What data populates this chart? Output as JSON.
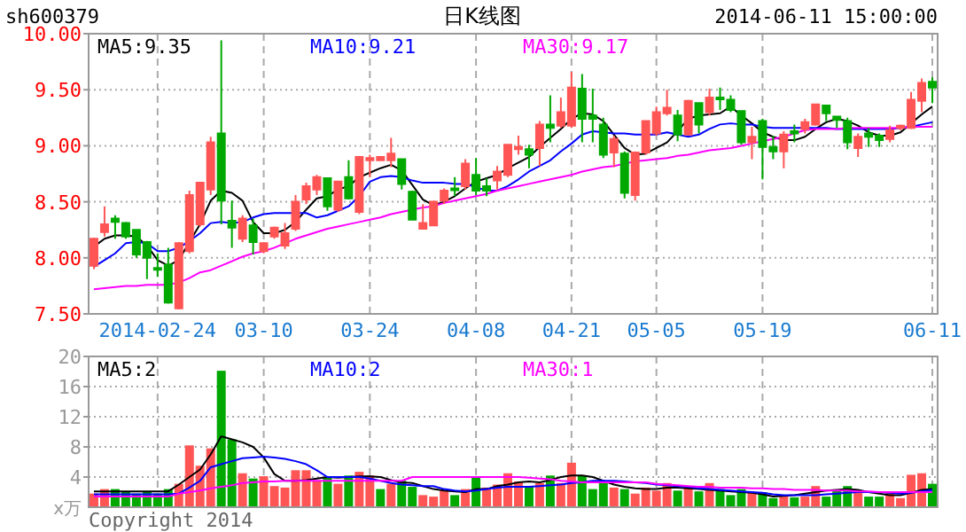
{
  "chart_data": [
    {
      "type": "candlestick",
      "title": "日K线图",
      "annotations": [
        "sh600379",
        "2014-06-11 15:00:00"
      ],
      "categories": [
        null,
        null,
        null,
        null,
        null,
        null,
        "2014-02-24",
        null,
        null,
        null,
        null,
        null,
        null,
        null,
        null,
        null,
        "03-10",
        null,
        null,
        null,
        null,
        null,
        null,
        null,
        null,
        null,
        "03-24",
        null,
        null,
        null,
        null,
        null,
        null,
        null,
        null,
        null,
        "04-08",
        null,
        null,
        null,
        null,
        null,
        null,
        null,
        null,
        "04-21",
        null,
        null,
        null,
        null,
        null,
        null,
        null,
        "05-05",
        null,
        null,
        null,
        null,
        null,
        null,
        null,
        null,
        null,
        "05-19",
        null,
        null,
        null,
        null,
        null,
        null,
        null,
        null,
        null,
        null,
        null,
        null,
        null,
        null,
        null,
        "06-11"
      ],
      "ohlc": [
        [
          7.93,
          8.18,
          7.9,
          8.17
        ],
        [
          8.23,
          8.46,
          8.19,
          8.3
        ],
        [
          8.35,
          8.38,
          8.17,
          8.32
        ],
        [
          8.31,
          8.32,
          8.17,
          8.19
        ],
        [
          8.25,
          8.25,
          8.0,
          8.03
        ],
        [
          8.14,
          8.15,
          7.81,
          8.0
        ],
        [
          7.91,
          8.04,
          7.83,
          7.9
        ],
        [
          7.94,
          8.09,
          7.59,
          7.6
        ],
        [
          7.55,
          8.14,
          7.54,
          8.13
        ],
        [
          8.06,
          8.6,
          8.04,
          8.56
        ],
        [
          8.3,
          8.67,
          8.28,
          8.67
        ],
        [
          8.61,
          9.08,
          8.56,
          9.03
        ],
        [
          9.11,
          9.94,
          8.3,
          8.51
        ],
        [
          8.33,
          8.51,
          8.09,
          8.27
        ],
        [
          8.17,
          8.38,
          8.14,
          8.35
        ],
        [
          8.29,
          8.35,
          8.03,
          8.14
        ],
        [
          8.06,
          8.14,
          8.04,
          8.13
        ],
        [
          8.19,
          8.28,
          8.17,
          8.27
        ],
        [
          8.11,
          8.31,
          8.08,
          8.22
        ],
        [
          8.26,
          8.56,
          8.24,
          8.5
        ],
        [
          8.52,
          8.67,
          8.48,
          8.64
        ],
        [
          8.61,
          8.74,
          8.56,
          8.72
        ],
        [
          8.71,
          8.71,
          8.42,
          8.46
        ],
        [
          8.43,
          8.68,
          8.41,
          8.68
        ],
        [
          8.72,
          8.87,
          8.52,
          8.53
        ],
        [
          8.41,
          8.9,
          8.39,
          8.9
        ],
        [
          8.87,
          8.92,
          8.72,
          8.89
        ],
        [
          8.87,
          8.9,
          8.87,
          8.9
        ],
        [
          8.87,
          9.07,
          8.81,
          8.93
        ],
        [
          8.88,
          8.88,
          8.61,
          8.66
        ],
        [
          8.59,
          8.6,
          8.34,
          8.34
        ],
        [
          8.26,
          8.48,
          8.26,
          8.31
        ],
        [
          8.29,
          8.51,
          8.29,
          8.5
        ],
        [
          8.51,
          8.62,
          8.48,
          8.6
        ],
        [
          8.62,
          8.72,
          8.55,
          8.61
        ],
        [
          8.64,
          8.88,
          8.61,
          8.84
        ],
        [
          8.74,
          8.89,
          8.56,
          8.6
        ],
        [
          8.64,
          8.71,
          8.55,
          8.6
        ],
        [
          8.69,
          8.82,
          8.61,
          8.77
        ],
        [
          8.74,
          9.01,
          8.72,
          9.01
        ],
        [
          8.97,
          9.09,
          8.92,
          8.99
        ],
        [
          8.97,
          9.01,
          8.8,
          8.92
        ],
        [
          8.98,
          9.22,
          8.82,
          9.19
        ],
        [
          9.19,
          9.45,
          9.03,
          9.16
        ],
        [
          9.18,
          9.43,
          9.16,
          9.3
        ],
        [
          9.18,
          9.66,
          9.16,
          9.52
        ],
        [
          9.51,
          9.64,
          9.03,
          9.24
        ],
        [
          9.27,
          9.51,
          9.03,
          9.24
        ],
        [
          9.19,
          9.25,
          8.89,
          8.92
        ],
        [
          8.94,
          9.09,
          8.81,
          9.06
        ],
        [
          8.93,
          8.95,
          8.53,
          8.58
        ],
        [
          8.56,
          8.95,
          8.51,
          8.94
        ],
        [
          8.94,
          9.22,
          8.92,
          9.22
        ],
        [
          9.11,
          9.35,
          9.09,
          9.3
        ],
        [
          9.29,
          9.5,
          9.27,
          9.34
        ],
        [
          9.27,
          9.32,
          9.04,
          9.1
        ],
        [
          9.1,
          9.41,
          9.09,
          9.4
        ],
        [
          9.38,
          9.38,
          9.11,
          9.19
        ],
        [
          9.3,
          9.51,
          9.27,
          9.43
        ],
        [
          9.43,
          9.52,
          9.32,
          9.42
        ],
        [
          9.41,
          9.45,
          9.3,
          9.32
        ],
        [
          9.31,
          9.31,
          9.01,
          9.03
        ],
        [
          9.03,
          9.17,
          8.88,
          9.08
        ],
        [
          9.22,
          9.24,
          8.7,
          8.99
        ],
        [
          8.99,
          9.09,
          8.88,
          8.95
        ],
        [
          8.95,
          9.13,
          8.8,
          9.1
        ],
        [
          9.13,
          9.19,
          9.03,
          9.11
        ],
        [
          9.15,
          9.24,
          9.11,
          9.21
        ],
        [
          9.19,
          9.37,
          9.18,
          9.37
        ],
        [
          9.36,
          9.36,
          9.22,
          9.29
        ],
        [
          9.26,
          9.26,
          9.16,
          9.23
        ],
        [
          9.22,
          9.25,
          8.97,
          9.03
        ],
        [
          8.98,
          9.11,
          8.9,
          9.08
        ],
        [
          9.11,
          9.16,
          8.99,
          9.08
        ],
        [
          9.09,
          9.11,
          8.99,
          9.05
        ],
        [
          9.06,
          9.18,
          9.03,
          9.14
        ],
        [
          9.16,
          9.19,
          9.14,
          9.18
        ],
        [
          9.16,
          9.48,
          9.15,
          9.41
        ],
        [
          9.4,
          9.6,
          9.3,
          9.56
        ],
        [
          9.57,
          9.61,
          9.38,
          9.52
        ]
      ],
      "colors": [
        "#ff5555",
        "#ff5555",
        "#00a800",
        "#00a800",
        "#00a800",
        "#00a800",
        "#00a800",
        "#00a800",
        "#ff5555",
        "#ff5555",
        "#ff5555",
        "#ff5555",
        "#00a800",
        "#00a800",
        "#ff5555",
        "#00a800",
        "#ff5555",
        "#ff5555",
        "#ff5555",
        "#ff5555",
        "#ff5555",
        "#ff5555",
        "#00a800",
        "#ff5555",
        "#00a800",
        "#ff5555",
        "#ff5555",
        "#ff5555",
        "#ff5555",
        "#00a800",
        "#00a800",
        "#ff5555",
        "#ff5555",
        "#ff5555",
        "#00a800",
        "#ff5555",
        "#00a800",
        "#00a800",
        "#ff5555",
        "#ff5555",
        "#ff5555",
        "#00a800",
        "#ff5555",
        "#00a800",
        "#ff5555",
        "#ff5555",
        "#00a800",
        "#00a800",
        "#00a800",
        "#ff5555",
        "#00a800",
        "#ff5555",
        "#ff5555",
        "#ff5555",
        "#ff5555",
        "#00a800",
        "#ff5555",
        "#00a800",
        "#ff5555",
        "#00a800",
        "#00a800",
        "#00a800",
        "#ff5555",
        "#00a800",
        "#00a800",
        "#ff5555",
        "#00a800",
        "#ff5555",
        "#ff5555",
        "#00a800",
        "#00a800",
        "#00a800",
        "#ff5555",
        "#00a800",
        "#00a800",
        "#ff5555",
        "#ff5555",
        "#ff5555",
        "#ff5555",
        "#00a800"
      ],
      "series": [
        {
          "name": "MA5:9.35",
          "type": "line",
          "color": "#000000",
          "values": [
            8.1,
            8.17,
            8.2,
            8.2,
            8.19,
            8.11,
            7.98,
            7.93,
            7.98,
            8.14,
            8.3,
            8.51,
            8.6,
            8.58,
            8.51,
            8.32,
            8.22,
            8.22,
            8.25,
            8.32,
            8.43,
            8.53,
            8.55,
            8.61,
            8.64,
            8.72,
            8.76,
            8.8,
            8.83,
            8.78,
            8.65,
            8.52,
            8.47,
            8.5,
            8.55,
            8.62,
            8.68,
            8.71,
            8.74,
            8.8,
            8.85,
            8.9,
            8.99,
            9.07,
            9.15,
            9.24,
            9.29,
            9.28,
            9.22,
            9.1,
            8.98,
            8.92,
            8.93,
            8.98,
            9.03,
            9.13,
            9.24,
            9.27,
            9.28,
            9.29,
            9.35,
            9.27,
            9.2,
            9.12,
            9.08,
            9.05,
            9.05,
            9.08,
            9.15,
            9.21,
            9.24,
            9.22,
            9.18,
            9.12,
            9.09,
            9.09,
            9.12,
            9.2,
            9.28,
            9.35
          ]
        },
        {
          "name": "MA10:9.21",
          "type": "line",
          "color": "#0000ff",
          "values": [
            7.92,
            7.98,
            8.04,
            8.13,
            8.14,
            8.13,
            8.06,
            8.06,
            8.09,
            8.15,
            8.22,
            8.31,
            8.32,
            8.31,
            8.32,
            8.36,
            8.39,
            8.4,
            8.4,
            8.4,
            8.4,
            8.36,
            8.38,
            8.42,
            8.46,
            8.55,
            8.68,
            8.72,
            8.73,
            8.72,
            8.69,
            8.67,
            8.67,
            8.67,
            8.66,
            8.66,
            8.63,
            8.6,
            8.6,
            8.64,
            8.7,
            8.77,
            8.82,
            8.87,
            8.95,
            9.02,
            9.1,
            9.13,
            9.12,
            9.11,
            9.11,
            9.1,
            9.1,
            9.1,
            9.12,
            9.1,
            9.08,
            9.1,
            9.15,
            9.19,
            9.2,
            9.19,
            9.19,
            9.17,
            9.16,
            9.16,
            9.16,
            9.16,
            9.16,
            9.16,
            9.15,
            9.15,
            9.15,
            9.15,
            9.15,
            9.15,
            9.16,
            9.17,
            9.19,
            9.21
          ]
        },
        {
          "name": "MA30:9.17",
          "type": "line",
          "color": "#ff00ff",
          "values": [
            7.72,
            7.73,
            7.74,
            7.75,
            7.75,
            7.76,
            7.76,
            7.76,
            7.78,
            7.82,
            7.87,
            7.89,
            7.93,
            7.97,
            8.01,
            8.04,
            8.06,
            8.09,
            8.13,
            8.17,
            8.2,
            8.23,
            8.26,
            8.28,
            8.3,
            8.32,
            8.34,
            8.36,
            8.39,
            8.41,
            8.43,
            8.45,
            8.46,
            8.49,
            8.51,
            8.53,
            8.55,
            8.57,
            8.6,
            8.62,
            8.64,
            8.66,
            8.68,
            8.7,
            8.72,
            8.74,
            8.77,
            8.79,
            8.81,
            8.82,
            8.84,
            8.86,
            8.87,
            8.88,
            8.89,
            8.91,
            8.92,
            8.94,
            8.96,
            8.97,
            8.98,
            9.0,
            9.02,
            9.04,
            9.06,
            9.08,
            9.11,
            9.14,
            9.15,
            9.15,
            9.15,
            9.16,
            9.16,
            9.16,
            9.16,
            9.16,
            9.16,
            9.17,
            9.17,
            9.17
          ]
        }
      ],
      "ylim": [
        7.5,
        10.0
      ],
      "yticks": [
        {
          "value": 7.5,
          "label": "7.50"
        },
        {
          "value": 8,
          "label": "8.00"
        },
        {
          "value": 8.5,
          "label": "8.50"
        },
        {
          "value": 9,
          "label": "9.00"
        },
        {
          "value": 9.5,
          "label": "9.50"
        },
        {
          "value": 10,
          "label": "10.00"
        }
      ],
      "grid": true,
      "legend": "top left"
    },
    {
      "type": "bar",
      "ylabel": "x万",
      "annotations": [
        "Copyright 2014"
      ],
      "tick_labels": "y",
      "categories": [
        null,
        null,
        null,
        null,
        null,
        null,
        null,
        null,
        null,
        null,
        null,
        null,
        null,
        null,
        null,
        null,
        null,
        null,
        null,
        null,
        null,
        null,
        null,
        null,
        null,
        null,
        null,
        null,
        null,
        null,
        null,
        null,
        null,
        null,
        null,
        null,
        null,
        null,
        null,
        null,
        null,
        null,
        null,
        null,
        null,
        null,
        null,
        null,
        null,
        null,
        null,
        null,
        null,
        null,
        null,
        null,
        null,
        null,
        null,
        null,
        null,
        null,
        null,
        null,
        null,
        null,
        null,
        null,
        null,
        null,
        null,
        null,
        null,
        null,
        null,
        null,
        null,
        null,
        null,
        null
      ],
      "series": [
        {
          "type": "bar",
          "values": [
            1.8,
            2.4,
            2.4,
            2.0,
            1.8,
            2.0,
            1.8,
            2.4,
            3.1,
            8.2,
            5.5,
            7.8,
            18.1,
            9.0,
            4.5,
            3.8,
            4.1,
            2.8,
            2.6,
            4.9,
            4.9,
            3.5,
            4.0,
            3.1,
            4.2,
            4.7,
            4.2,
            2.4,
            3.1,
            3.5,
            2.7,
            1.6,
            1.4,
            2.2,
            1.6,
            2.4,
            4.0,
            2.6,
            3.0,
            4.5,
            3.4,
            2.7,
            3.2,
            4.2,
            3.2,
            5.9,
            4.2,
            2.4,
            3.2,
            2.6,
            2.4,
            1.8,
            2.6,
            2.2,
            3.2,
            2.2,
            2.7,
            2.1,
            3.2,
            2.4,
            1.6,
            2.4,
            2.0,
            2.0,
            1.2,
            1.6,
            1.3,
            1.4,
            2.8,
            1.4,
            2.2,
            2.8,
            2.2,
            1.4,
            1.4,
            2.0,
            1.2,
            4.3,
            4.5,
            3.1
          ],
          "colors": [
            "#ff5555",
            "#ff5555",
            "#00a800",
            "#00a800",
            "#00a800",
            "#00a800",
            "#00a800",
            "#00a800",
            "#ff5555",
            "#ff5555",
            "#ff5555",
            "#ff5555",
            "#00a800",
            "#00a800",
            "#ff5555",
            "#00a800",
            "#ff5555",
            "#ff5555",
            "#ff5555",
            "#ff5555",
            "#ff5555",
            "#ff5555",
            "#00a800",
            "#ff5555",
            "#00a800",
            "#ff5555",
            "#ff5555",
            "#00a800",
            "#ff5555",
            "#00a800",
            "#00a800",
            "#ff5555",
            "#ff5555",
            "#ff5555",
            "#00a800",
            "#ff5555",
            "#00a800",
            "#ff5555",
            "#ff5555",
            "#ff5555",
            "#ff5555",
            "#00a800",
            "#ff5555",
            "#00a800",
            "#ff5555",
            "#ff5555",
            "#00a800",
            "#00a800",
            "#00a800",
            "#ff5555",
            "#00a800",
            "#ff5555",
            "#ff5555",
            "#ff5555",
            "#ff5555",
            "#00a800",
            "#ff5555",
            "#00a800",
            "#ff5555",
            "#00a800",
            "#00a800",
            "#00a800",
            "#ff5555",
            "#00a800",
            "#00a800",
            "#ff5555",
            "#00a800",
            "#ff5555",
            "#ff5555",
            "#00a800",
            "#00a800",
            "#00a800",
            "#ff5555",
            "#00a800",
            "#00a800",
            "#ff5555",
            "#ff5555",
            "#ff5555",
            "#ff5555",
            "#00a800"
          ]
        },
        {
          "name": "MA5:2",
          "type": "line",
          "color": "#000000",
          "values": [
            2.1,
            2.1,
            2.1,
            2.1,
            2.1,
            2.1,
            2.1,
            2.1,
            3.0,
            4.0,
            5.0,
            7.0,
            9.4,
            9.0,
            8.6,
            8.0,
            6.6,
            4.4,
            3.5,
            3.5,
            3.6,
            3.8,
            4.0,
            3.9,
            4.0,
            4.1,
            4.1,
            4.0,
            3.6,
            3.3,
            3.2,
            2.8,
            2.4,
            2.2,
            2.1,
            2.0,
            2.4,
            2.4,
            2.8,
            3.0,
            3.3,
            3.4,
            3.3,
            3.6,
            4.0,
            4.2,
            4.2,
            4.0,
            3.5,
            3.0,
            2.7,
            2.5,
            2.4,
            2.4,
            2.6,
            2.6,
            2.5,
            2.4,
            2.3,
            2.2,
            2.1,
            2.0,
            1.9,
            1.7,
            1.4,
            1.5,
            1.6,
            1.8,
            2.0,
            2.2,
            2.3,
            2.4,
            2.3,
            2.0,
            1.8,
            1.6,
            1.6,
            1.9,
            2.3,
            2.4
          ]
        },
        {
          "name": "MA10:2",
          "type": "line",
          "color": "#0000ff",
          "values": [
            1.7,
            1.7,
            1.7,
            1.7,
            1.7,
            1.7,
            1.7,
            1.7,
            1.8,
            2.6,
            3.5,
            5.3,
            5.7,
            6.1,
            6.5,
            6.6,
            6.7,
            6.6,
            6.4,
            6.1,
            5.7,
            4.9,
            4.0,
            4.0,
            4.0,
            4.0,
            3.8,
            3.5,
            3.2,
            3.0,
            2.9,
            2.8,
            2.8,
            2.4,
            2.2,
            2.1,
            2.2,
            2.4,
            2.6,
            2.7,
            2.7,
            2.7,
            2.8,
            2.9,
            3.0,
            3.2,
            3.3,
            3.5,
            3.5,
            3.5,
            3.4,
            3.3,
            3.2,
            3.0,
            2.9,
            2.8,
            2.7,
            2.5,
            2.4,
            2.3,
            2.2,
            2.1,
            2.0,
            1.9,
            1.7,
            1.6,
            1.6,
            1.6,
            1.6,
            1.7,
            1.8,
            1.9,
            2.0,
            2.0,
            2.0,
            1.9,
            1.8,
            1.9,
            2.1,
            2.3
          ]
        },
        {
          "name": "MA30:1",
          "type": "line",
          "color": "#ff00ff",
          "values": [
            1.4,
            1.4,
            1.4,
            1.4,
            1.4,
            1.4,
            1.4,
            1.4,
            1.8,
            2.0,
            2.2,
            2.5,
            2.7,
            2.9,
            3.2,
            3.3,
            3.4,
            3.4,
            3.5,
            3.5,
            3.5,
            3.5,
            3.5,
            3.5,
            3.5,
            3.5,
            3.5,
            3.5,
            3.5,
            3.5,
            4.0,
            4.0,
            4.0,
            4.0,
            4.0,
            4.0,
            4.0,
            4.0,
            4.0,
            4.0,
            4.0,
            3.9,
            3.8,
            3.7,
            3.5,
            3.4,
            3.3,
            3.3,
            3.3,
            3.3,
            3.3,
            3.3,
            3.3,
            3.1,
            3.0,
            2.9,
            2.8,
            2.7,
            2.7,
            2.6,
            2.6,
            2.6,
            2.5,
            2.5,
            2.4,
            2.4,
            2.3,
            2.3,
            2.3,
            2.2,
            2.2,
            2.2,
            2.1,
            2.1,
            2.0,
            2.0,
            2.0,
            2.0,
            2.0,
            2.0
          ]
        }
      ],
      "ylim": [
        0,
        20
      ],
      "yticks": [
        4,
        8,
        12,
        16,
        20
      ],
      "grid": true,
      "legend": "top left"
    }
  ]
}
